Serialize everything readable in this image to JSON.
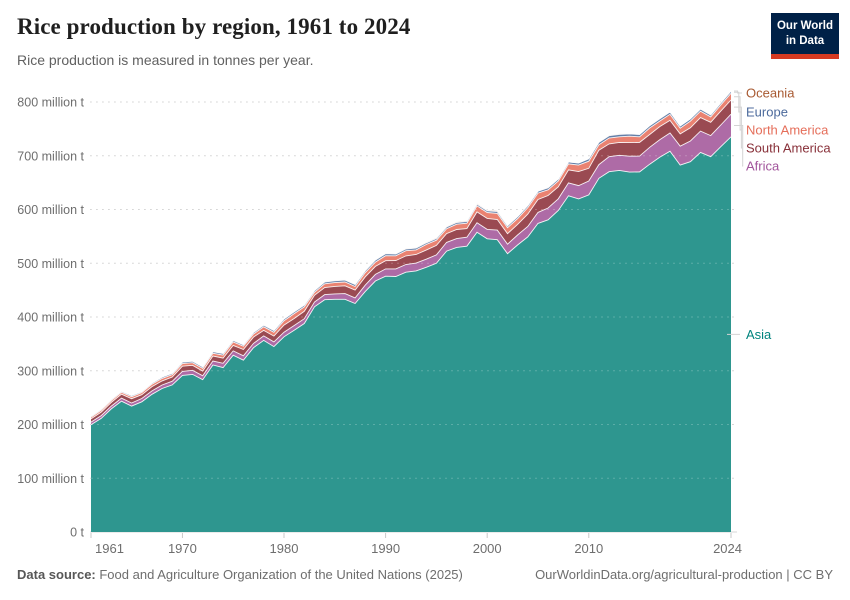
{
  "header": {
    "title": "Rice production by region, 1961 to 2024",
    "subtitle": "Rice production is measured in tonnes per year."
  },
  "logo": {
    "line1": "Our World",
    "line2": "in Data",
    "bg_color": "#002147",
    "bar_color": "#d73a21"
  },
  "footer": {
    "source_label": "Data source:",
    "source_text": " Food and Agriculture Organization of the United Nations (2025)",
    "credit": "OurWorldinData.org/agricultural-production | CC BY"
  },
  "chart_data": {
    "type": "area",
    "stacked": true,
    "title": "Rice production by region, 1961 to 2024",
    "subtitle": "Rice production is measured in tonnes per year.",
    "xlabel": "",
    "ylabel": "tonnes per year",
    "grid": "dashed-horizontal",
    "legend_position": "right",
    "ylim": [
      0,
      830
    ],
    "y_ticks": [
      0,
      100,
      200,
      300,
      400,
      500,
      600,
      700,
      800
    ],
    "y_tick_labels": [
      "0 t",
      "100 million t",
      "200 million t",
      "300 million t",
      "400 million t",
      "500 million t",
      "600 million t",
      "700 million t",
      "800 million t"
    ],
    "x_ticks": [
      1961,
      1970,
      1980,
      1990,
      2000,
      2010,
      2024
    ],
    "legend_order_top_to_bottom": [
      "Oceania",
      "Europe",
      "North America",
      "South America",
      "Africa",
      "Asia"
    ],
    "years": [
      1961,
      1962,
      1963,
      1964,
      1965,
      1966,
      1967,
      1968,
      1969,
      1970,
      1971,
      1972,
      1973,
      1974,
      1975,
      1976,
      1977,
      1978,
      1979,
      1980,
      1981,
      1982,
      1983,
      1984,
      1985,
      1986,
      1987,
      1988,
      1989,
      1990,
      1991,
      1992,
      1993,
      1994,
      1995,
      1996,
      1997,
      1998,
      1999,
      2000,
      2001,
      2002,
      2003,
      2004,
      2005,
      2006,
      2007,
      2008,
      2009,
      2010,
      2011,
      2012,
      2013,
      2014,
      2015,
      2016,
      2017,
      2018,
      2019,
      2020,
      2021,
      2022,
      2023,
      2024
    ],
    "unit": "million tonnes",
    "series": [
      {
        "name": "Asia",
        "label_color": "#00847E",
        "fill_color": "#2e968f",
        "values": [
          199.5,
          211.4,
          229.0,
          243.4,
          234.2,
          242.3,
          256.2,
          266.9,
          273.6,
          291.3,
          293.2,
          283.3,
          310.7,
          305.9,
          328.9,
          319.7,
          342.8,
          356.4,
          344.9,
          363.2,
          375.3,
          387.9,
          419.0,
          432.2,
          433.0,
          433.0,
          425.2,
          447.7,
          466.9,
          475.9,
          475.3,
          483.3,
          485.8,
          492.4,
          499.9,
          522.6,
          529.4,
          531.7,
          557.8,
          545.5,
          543.8,
          517.7,
          534.2,
          549.0,
          574.1,
          580.9,
          598.1,
          625.4,
          619.8,
          627.1,
          658.1,
          670.4,
          672.7,
          669.5,
          669.9,
          684.3,
          697.5,
          708.4,
          682.6,
          688.9,
          706.2,
          698.2,
          716.8,
          735.3
        ]
      },
      {
        "name": "Africa",
        "label_color": "#A2559C",
        "fill_color": "#ae6ba6",
        "values": [
          4.9,
          5.1,
          5.3,
          5.6,
          5.8,
          6.0,
          6.4,
          6.6,
          6.9,
          7.4,
          7.6,
          7.3,
          7.5,
          8.0,
          8.1,
          8.2,
          8.0,
          8.4,
          8.7,
          8.6,
          8.9,
          9.0,
          8.9,
          9.4,
          10.0,
          10.6,
          10.4,
          11.6,
          12.4,
          13.6,
          14.1,
          14.3,
          14.5,
          15.1,
          15.6,
          16.2,
          16.4,
          16.8,
          17.6,
          17.4,
          17.8,
          17.7,
          18.5,
          19.3,
          20.5,
          21.9,
          21.8,
          24.1,
          24.6,
          26.0,
          25.5,
          27.8,
          28.1,
          29.7,
          29.5,
          31.5,
          32.6,
          33.9,
          35.2,
          38.6,
          39.7,
          39.2,
          40.5,
          42.0
        ]
      },
      {
        "name": "South America",
        "label_color": "#883039",
        "fill_color": "#9a4a52",
        "values": [
          6.1,
          6.6,
          6.9,
          7.3,
          8.0,
          7.1,
          7.9,
          7.6,
          7.8,
          9.8,
          9.3,
          8.8,
          9.2,
          9.6,
          10.2,
          11.6,
          11.8,
          10.2,
          10.9,
          13.1,
          13.0,
          13.7,
          12.5,
          13.2,
          13.9,
          14.5,
          14.4,
          15.4,
          14.9,
          15.3,
          15.6,
          16.0,
          15.9,
          16.9,
          17.8,
          16.3,
          16.9,
          16.0,
          20.1,
          20.6,
          19.8,
          19.5,
          19.8,
          23.1,
          24.0,
          23.3,
          22.4,
          24.1,
          26.1,
          23.5,
          26.7,
          23.9,
          24.1,
          25.2,
          25.4,
          23.7,
          24.3,
          23.5,
          22.9,
          24.5,
          25.1,
          24.8,
          25.8,
          26.5
        ]
      },
      {
        "name": "North America",
        "label_color": "#E56E5A",
        "fill_color": "#ea8271",
        "values": [
          3.1,
          3.3,
          3.5,
          3.6,
          3.8,
          3.9,
          4.4,
          4.7,
          4.6,
          4.8,
          4.9,
          5.0,
          5.1,
          5.7,
          6.4,
          6.2,
          5.8,
          6.8,
          7.1,
          8.2,
          9.1,
          8.1,
          5.6,
          7.0,
          7.1,
          7.0,
          6.7,
          8.0,
          8.0,
          9.3,
          8.8,
          9.7,
          8.7,
          10.4,
          9.6,
          9.2,
          9.9,
          10.1,
          11.2,
          10.9,
          11.4,
          11.2,
          10.7,
          12.2,
          11.9,
          10.6,
          10.8,
          11.2,
          12.1,
          13.3,
          10.1,
          10.9,
          10.4,
          11.9,
          10.4,
          12.2,
          10.2,
          11.4,
          10.5,
          12.5,
          11.8,
          10.0,
          11.5,
          12.3
        ]
      },
      {
        "name": "Europe",
        "label_color": "#4C6A9C",
        "fill_color": "#647fa8",
        "values": [
          1.8,
          2.0,
          2.0,
          2.1,
          2.1,
          2.0,
          2.2,
          2.3,
          2.4,
          2.7,
          2.8,
          2.7,
          2.9,
          2.9,
          2.9,
          2.6,
          2.7,
          3.0,
          3.1,
          3.1,
          3.2,
          3.3,
          3.2,
          3.4,
          3.3,
          3.5,
          3.6,
          3.5,
          3.7,
          3.6,
          3.4,
          3.3,
          3.2,
          3.1,
          3.2,
          3.2,
          3.3,
          3.2,
          3.2,
          3.2,
          3.3,
          3.4,
          3.5,
          3.7,
          3.6,
          3.5,
          3.6,
          3.7,
          4.0,
          4.4,
          4.5,
          4.3,
          4.4,
          4.3,
          4.2,
          4.2,
          4.3,
          4.2,
          4.2,
          4.1,
          4.0,
          3.6,
          3.8,
          4.0
        ]
      },
      {
        "name": "Oceania",
        "label_color": "#A85A32",
        "fill_color": "#b2603d",
        "values": [
          0.2,
          0.2,
          0.2,
          0.2,
          0.2,
          0.2,
          0.25,
          0.3,
          0.3,
          0.3,
          0.3,
          0.35,
          0.4,
          0.45,
          0.5,
          0.5,
          0.6,
          0.65,
          0.7,
          0.7,
          0.75,
          0.85,
          0.6,
          0.9,
          0.9,
          0.85,
          0.8,
          0.8,
          0.9,
          0.9,
          0.95,
          1.1,
          1.0,
          1.1,
          1.2,
          1.0,
          1.4,
          1.4,
          1.4,
          1.1,
          1.8,
          1.3,
          0.4,
          0.6,
          0.3,
          1.0,
          0.2,
          0.1,
          0.1,
          0.2,
          0.7,
          0.9,
          1.2,
          0.8,
          0.7,
          0.3,
          0.8,
          0.6,
          0.1,
          0.1,
          0.5,
          0.7,
          0.5,
          0.6
        ]
      }
    ]
  }
}
